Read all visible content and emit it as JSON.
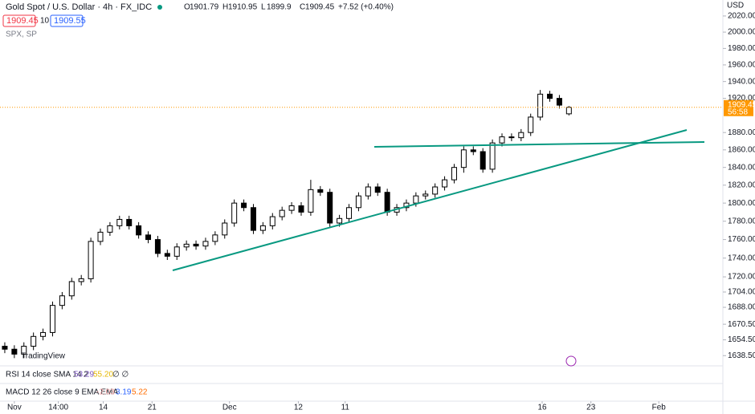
{
  "header": {
    "symbol": "Gold Spot / U.S. Dollar · 4h · FX_IDC",
    "ohlc_letters": [
      "O",
      "H",
      "L",
      "C"
    ],
    "change": "+7.52 (+0.40%)",
    "sell": "1909.45",
    "spread": "10",
    "buy": "1909.55",
    "compare": "SPX, SP"
  },
  "currency": "USD",
  "countdown": "56:58",
  "logo": "TradingView",
  "rsi": {
    "label": "RSI 14 close SMA 14 2",
    "values": [
      "53.29",
      "55.20"
    ],
    "extra": "∅ ∅"
  },
  "macd": {
    "label": "MACD 12 26 close 9 EMA EMA",
    "values": [
      "-2.03",
      "3.19",
      "5.22"
    ]
  },
  "chart_data": {
    "type": "candlestick",
    "log": true,
    "ylim": [
      1629,
      2040
    ],
    "xlim": [
      -0.5,
      75.1
    ],
    "yticks": [
      {
        "value": 2020,
        "label": "2020.00"
      },
      {
        "value": 2000,
        "label": "2000.00"
      },
      {
        "value": 1980,
        "label": "1980.00"
      },
      {
        "value": 1960,
        "label": "1960.00"
      },
      {
        "value": 1940,
        "label": "1940.00"
      },
      {
        "value": 1920,
        "label": "1920.00"
      },
      {
        "value": 1880,
        "label": "1880.00"
      },
      {
        "value": 1860,
        "label": "1860.00"
      },
      {
        "value": 1840,
        "label": "1840.00"
      },
      {
        "value": 1820,
        "label": "1820.00"
      },
      {
        "value": 1800,
        "label": "1800.00"
      },
      {
        "value": 1780,
        "label": "1780.00"
      },
      {
        "value": 1760,
        "label": "1760.00"
      },
      {
        "value": 1740,
        "label": "1740.00"
      },
      {
        "value": 1720,
        "label": "1720.00"
      },
      {
        "value": 1704,
        "label": "1704.00"
      },
      {
        "value": 1688,
        "label": "1688.00"
      },
      {
        "value": 1670.5,
        "label": "1670.50"
      },
      {
        "value": 1654.5,
        "label": "1654.50"
      },
      {
        "value": 1638.5,
        "label": "1638.50"
      }
    ],
    "xticks": [
      {
        "value": 1,
        "label": "Nov"
      },
      {
        "value": 5.6,
        "label": "14:00"
      },
      {
        "value": 10.3,
        "label": "14"
      },
      {
        "value": 15.4,
        "label": "21"
      },
      {
        "value": 23.5,
        "label": "Dec"
      },
      {
        "value": 30.7,
        "label": "12"
      },
      {
        "value": 35.6,
        "label": "11"
      },
      {
        "value": 56.2,
        "label": "16"
      },
      {
        "value": 61.3,
        "label": "23"
      },
      {
        "value": 68.4,
        "label": "Feb"
      }
    ],
    "open": [
      1648,
      1645,
      1640,
      1648,
      1658,
      1662,
      1690,
      1700,
      1715,
      1718,
      1758,
      1768,
      1775,
      1782,
      1775,
      1765,
      1760,
      1745,
      1742,
      1752,
      1755,
      1753,
      1758,
      1765,
      1778,
      1800,
      1795,
      1770,
      1775,
      1785,
      1792,
      1797,
      1790,
      1815,
      1812,
      1778,
      1783,
      1795,
      1808,
      1818,
      1812,
      1790,
      1795,
      1800,
      1808,
      1810,
      1818,
      1826,
      1840,
      1860,
      1858,
      1838,
      1868,
      1875,
      1874,
      1880,
      1898,
      1925,
      1920,
      1901.79
    ],
    "high": [
      1652,
      1649,
      1652,
      1662,
      1666,
      1694,
      1704,
      1719,
      1722,
      1762,
      1772,
      1779,
      1786,
      1786,
      1779,
      1769,
      1764,
      1749,
      1756,
      1759,
      1759,
      1762,
      1769,
      1782,
      1804,
      1804,
      1799,
      1779,
      1789,
      1796,
      1801,
      1801,
      1826,
      1819,
      1816,
      1787,
      1799,
      1812,
      1822,
      1822,
      1816,
      1799,
      1804,
      1812,
      1814,
      1822,
      1830,
      1844,
      1864,
      1864,
      1862,
      1872,
      1879,
      1879,
      1884,
      1902,
      1930,
      1929,
      1924,
      1910.95
    ],
    "low": [
      1641,
      1636,
      1636,
      1644,
      1654,
      1658,
      1686,
      1696,
      1711,
      1714,
      1754,
      1764,
      1771,
      1771,
      1761,
      1756,
      1741,
      1738,
      1738,
      1748,
      1749,
      1749,
      1754,
      1761,
      1774,
      1791,
      1766,
      1766,
      1771,
      1781,
      1788,
      1786,
      1786,
      1808,
      1774,
      1774,
      1779,
      1791,
      1804,
      1808,
      1786,
      1786,
      1791,
      1796,
      1804,
      1806,
      1814,
      1822,
      1834,
      1854,
      1834,
      1834,
      1864,
      1870,
      1870,
      1876,
      1894,
      1916,
      1908,
      1899.9
    ],
    "close": [
      1645,
      1640,
      1648,
      1658,
      1662,
      1690,
      1700,
      1715,
      1718,
      1758,
      1768,
      1775,
      1782,
      1775,
      1765,
      1760,
      1745,
      1742,
      1752,
      1755,
      1753,
      1758,
      1765,
      1778,
      1800,
      1795,
      1770,
      1775,
      1785,
      1792,
      1797,
      1790,
      1815,
      1812,
      1778,
      1783,
      1795,
      1808,
      1818,
      1812,
      1790,
      1795,
      1800,
      1808,
      1810,
      1818,
      1826,
      1840,
      1860,
      1858,
      1838,
      1868,
      1875,
      1874,
      1880,
      1898,
      1925,
      1920,
      1912,
      1909.45
    ]
  }
}
